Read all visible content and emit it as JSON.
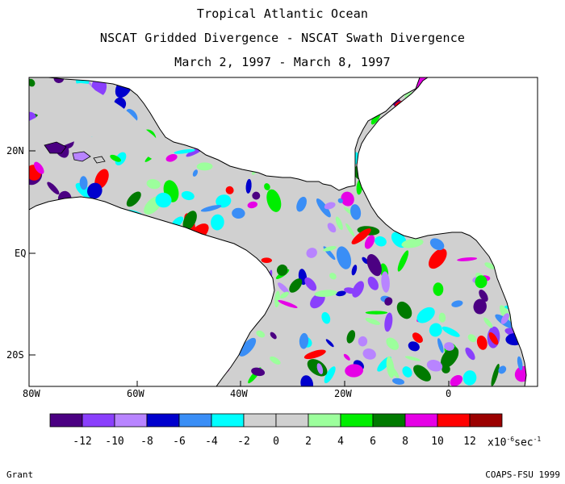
{
  "title": {
    "line1": "Tropical Atlantic Ocean",
    "line2": "NSCAT Gridded Divergence - NSCAT Swath Divergence",
    "line3": "March 2, 1997 - March 8, 1997"
  },
  "axes": {
    "lat_labels": [
      "20N",
      "EQ",
      "20S"
    ],
    "lon_labels": [
      "80W",
      "60W",
      "40W",
      "20W",
      "0"
    ]
  },
  "colorbar": {
    "colors": [
      "#4b0082",
      "#8a3ffc",
      "#b884ff",
      "#0000cd",
      "#3a8ef6",
      "#00ffff",
      "#d0d0d0",
      "#d0d0d0",
      "#9cff9c",
      "#00ee00",
      "#007a00",
      "#e600e6",
      "#ff0000",
      "#9b0000"
    ],
    "tick_labels": [
      "-12",
      "-10",
      "-8",
      "-6",
      "-4",
      "-2",
      "0",
      "2",
      "4",
      "6",
      "8",
      "10",
      "12"
    ],
    "units_base": "x10",
    "units_exp": "-6",
    "units_tail": "sec",
    "units_tail_exp": "-1"
  },
  "footer": {
    "left": "Grant",
    "right": "COAPS-FSU 1999"
  }
}
